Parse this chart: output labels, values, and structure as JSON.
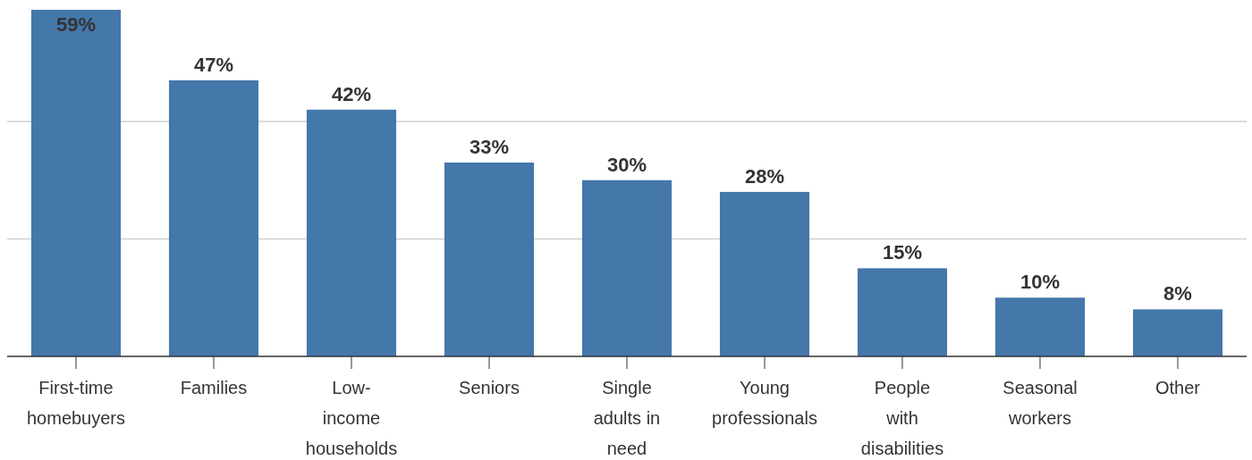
{
  "chart_data": {
    "type": "bar",
    "categories": [
      "First-time homebuyers",
      "Families",
      "Low-income households",
      "Seniors",
      "Single adults in need",
      "Young professionals",
      "People with disabilities",
      "Seasonal workers",
      "Other"
    ],
    "values": [
      59,
      47,
      42,
      33,
      30,
      28,
      15,
      10,
      8
    ],
    "value_labels": [
      "59%",
      "47%",
      "42%",
      "33%",
      "30%",
      "28%",
      "15%",
      "10%",
      "8%"
    ],
    "color": "#4477aa",
    "ref_lines": [
      {
        "axis": "y",
        "value": 20,
        "color": "#d0d0d0"
      },
      {
        "axis": "y",
        "value": 40,
        "color": "#d0d0d0"
      }
    ]
  }
}
